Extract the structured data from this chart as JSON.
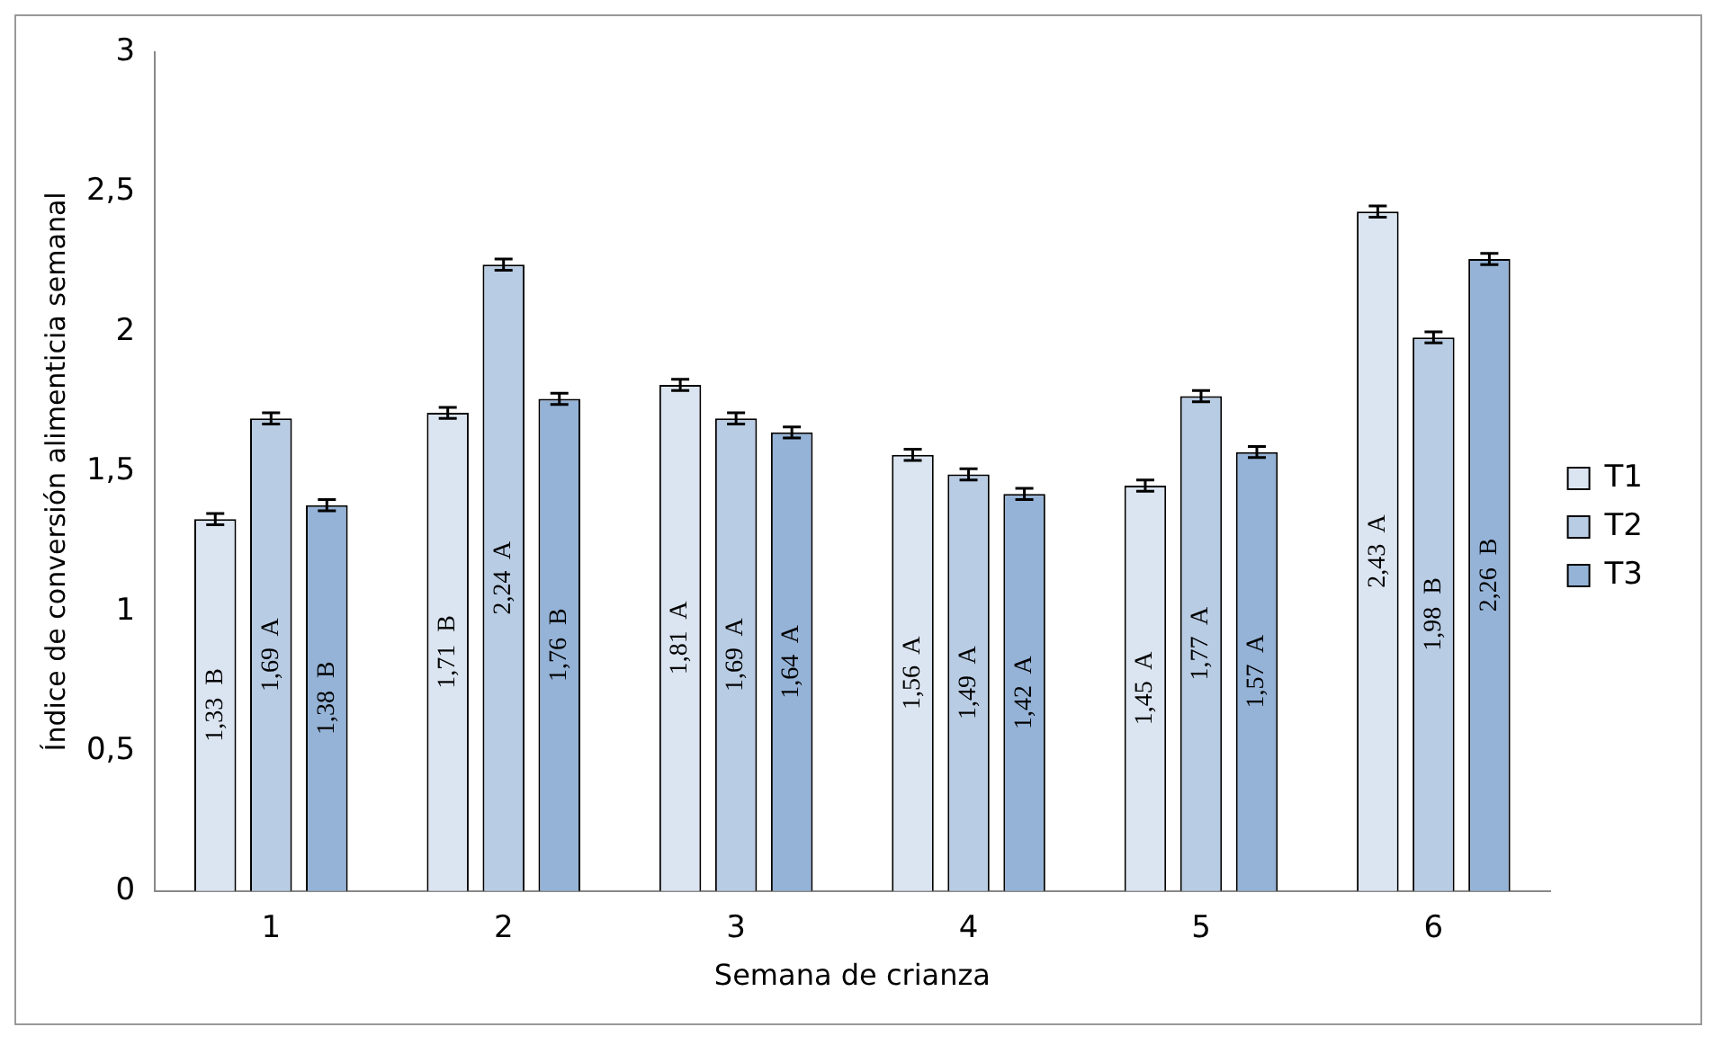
{
  "chart_data": {
    "type": "bar",
    "xlabel": "Semana de crianza",
    "ylabel": "Índice de conversión alimenticia semanal",
    "categories": [
      "1",
      "2",
      "3",
      "4",
      "5",
      "6"
    ],
    "series": [
      {
        "name": "T1",
        "color": "#dbe5f1",
        "values": [
          1.33,
          1.71,
          1.81,
          1.56,
          1.45,
          2.43
        ],
        "errors": [
          0.02,
          0.02,
          0.02,
          0.02,
          0.02,
          0.02
        ],
        "value_labels": [
          "1,33  B",
          "1,71  B",
          "1,81  A",
          "1,56  A",
          "1,45  A",
          "2,43  A"
        ]
      },
      {
        "name": "T2",
        "color": "#b8cce4",
        "values": [
          1.69,
          2.24,
          1.69,
          1.49,
          1.77,
          1.98
        ],
        "errors": [
          0.02,
          0.02,
          0.02,
          0.02,
          0.02,
          0.02
        ],
        "value_labels": [
          "1,69  A",
          "2,24  A",
          "1,69  A",
          "1,49  A",
          "1,77  A",
          "1,98  B"
        ]
      },
      {
        "name": "T3",
        "color": "#95b3d7",
        "values": [
          1.38,
          1.76,
          1.64,
          1.42,
          1.57,
          2.26
        ],
        "errors": [
          0.02,
          0.02,
          0.02,
          0.02,
          0.02,
          0.02
        ],
        "value_labels": [
          "1,38  B",
          "1,76  B",
          "1,64  A",
          "1,42  A",
          "1,57  A",
          "2,26  B"
        ]
      }
    ],
    "ylim": [
      0,
      3
    ],
    "yticks": [
      0,
      {
        "value": 0.5,
        "label": "0,5"
      },
      1,
      {
        "value": 1.5,
        "label": "1,5"
      },
      2,
      {
        "value": 2.5,
        "label": "2,5"
      },
      3
    ],
    "grid": false,
    "legend": "right"
  }
}
